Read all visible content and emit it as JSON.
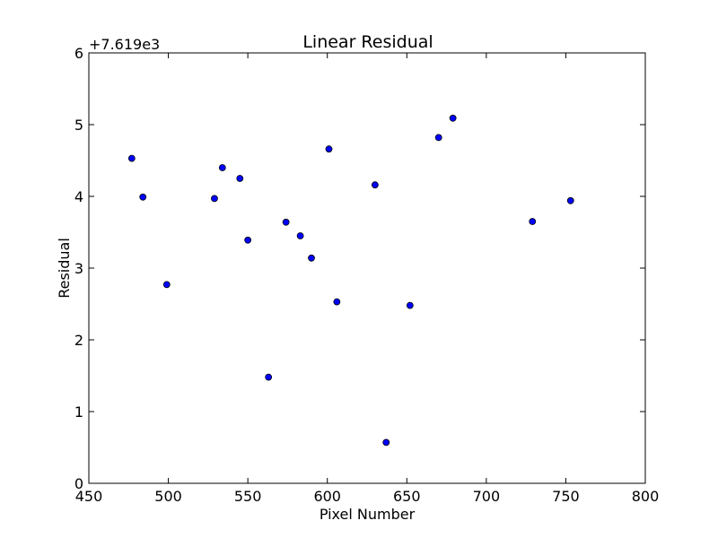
{
  "chart_data": {
    "type": "scatter",
    "title": "Linear Residual",
    "xlabel": "Pixel Number",
    "ylabel": "Residual",
    "y_offset_label": "+7.619e3",
    "xlim": [
      450,
      800
    ],
    "ylim": [
      0,
      6
    ],
    "xticks": [
      450,
      500,
      550,
      600,
      650,
      700,
      750,
      800
    ],
    "yticks": [
      0,
      1,
      2,
      3,
      4,
      5,
      6
    ],
    "grid": false,
    "marker_color": "#0000ff",
    "series": [
      {
        "points": [
          {
            "x": 477,
            "y": 4.53
          },
          {
            "x": 484,
            "y": 3.99
          },
          {
            "x": 499,
            "y": 2.77
          },
          {
            "x": 529,
            "y": 3.97
          },
          {
            "x": 534,
            "y": 4.4
          },
          {
            "x": 545,
            "y": 4.25
          },
          {
            "x": 550,
            "y": 3.39
          },
          {
            "x": 563,
            "y": 1.48
          },
          {
            "x": 574,
            "y": 3.64
          },
          {
            "x": 583,
            "y": 3.45
          },
          {
            "x": 590,
            "y": 3.14
          },
          {
            "x": 601,
            "y": 4.66
          },
          {
            "x": 606,
            "y": 2.53
          },
          {
            "x": 630,
            "y": 4.16
          },
          {
            "x": 637,
            "y": 0.57
          },
          {
            "x": 652,
            "y": 2.48
          },
          {
            "x": 670,
            "y": 4.82
          },
          {
            "x": 679,
            "y": 5.09
          },
          {
            "x": 729,
            "y": 3.65
          },
          {
            "x": 753,
            "y": 3.94
          }
        ]
      }
    ]
  }
}
